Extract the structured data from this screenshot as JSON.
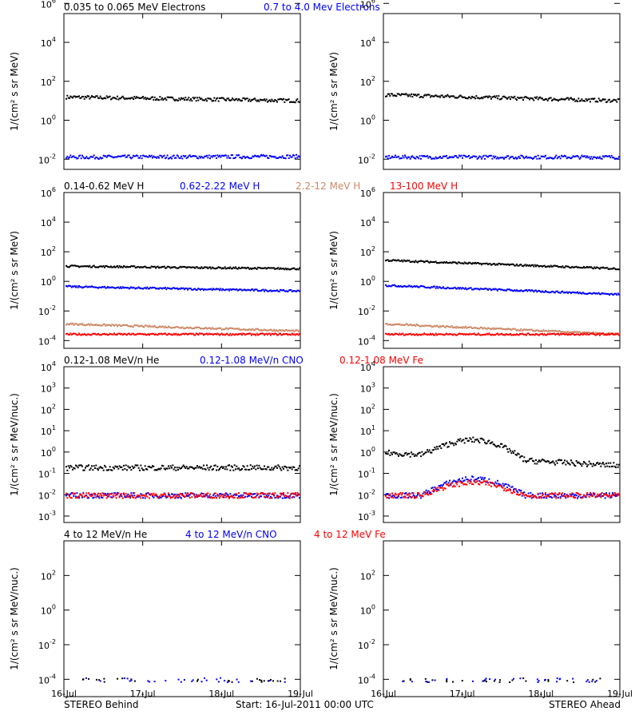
{
  "colors": {
    "black": "#000000",
    "blue": "#0000ff",
    "tan": "#cc8866",
    "red": "#ff0000"
  },
  "footer": {
    "left": "STEREO Behind",
    "center": "Start: 16-Jul-2011 00:00 UTC",
    "right": "STEREO Ahead"
  },
  "chart_data": [
    {
      "type": "scatter",
      "row": "electrons",
      "titles": [
        {
          "text": "0.035 to 0.065 MeV Electrons",
          "color": "black"
        },
        {
          "text": "0.7 to 4.0 Mev Electrons",
          "color": "blue"
        }
      ],
      "ylabel": "1/(cm² s sr MeV)",
      "yscale": "log",
      "ylim": [
        0.003,
        300000
      ],
      "yticks": [
        {
          "m": "10",
          "e": "-2",
          "v": 0.01
        },
        {
          "m": "10",
          "e": "0",
          "v": 1
        },
        {
          "m": "10",
          "e": "2",
          "v": 100
        },
        {
          "m": "10",
          "e": "4",
          "v": 10000
        },
        {
          "m": "10",
          "e": "6",
          "v": 1000000
        }
      ],
      "panels": [
        {
          "name": "STEREO Behind",
          "series": [
            {
              "color": "black",
              "y_start": 17,
              "y_end": 11
            },
            {
              "color": "blue",
              "y_start": 0.014,
              "y_end": 0.015
            }
          ]
        },
        {
          "name": "STEREO Ahead",
          "series": [
            {
              "color": "black",
              "y_start": 22,
              "y_end": 11
            },
            {
              "color": "blue",
              "y_start": 0.014,
              "y_end": 0.014
            }
          ]
        }
      ]
    },
    {
      "type": "scatter",
      "row": "protons",
      "titles": [
        {
          "text": "0.14-0.62 MeV H",
          "color": "black"
        },
        {
          "text": "0.62-2.22 MeV H",
          "color": "blue"
        },
        {
          "text": "2.2-12 MeV H",
          "color": "tan"
        },
        {
          "text": "13-100 MeV H",
          "color": "red"
        }
      ],
      "ylabel": "1/(cm² s sr MeV)",
      "yscale": "log",
      "ylim": [
        3e-05,
        1000000
      ],
      "yticks": [
        {
          "m": "10",
          "e": "-4",
          "v": 0.0001
        },
        {
          "m": "10",
          "e": "-2",
          "v": 0.01
        },
        {
          "m": "10",
          "e": "0",
          "v": 1
        },
        {
          "m": "10",
          "e": "2",
          "v": 100
        },
        {
          "m": "10",
          "e": "4",
          "v": 10000
        },
        {
          "m": "10",
          "e": "6",
          "v": 1000000
        }
      ],
      "panels": [
        {
          "name": "STEREO Behind",
          "series": [
            {
              "color": "black",
              "y_start": 12,
              "y_end": 8
            },
            {
              "color": "blue",
              "y_start": 0.5,
              "y_end": 0.25
            },
            {
              "color": "tan",
              "y_start": 0.0015,
              "y_end": 0.0005
            },
            {
              "color": "red",
              "y_start": 0.0003,
              "y_end": 0.0003
            }
          ]
        },
        {
          "name": "STEREO Ahead",
          "series": [
            {
              "color": "black",
              "y_start": 30,
              "y_end": 8
            },
            {
              "color": "blue",
              "y_start": 0.6,
              "y_end": 0.15
            },
            {
              "color": "tan",
              "y_start": 0.0015,
              "y_end": 0.0003
            },
            {
              "color": "red",
              "y_start": 0.0003,
              "y_end": 0.0003
            }
          ]
        }
      ]
    },
    {
      "type": "scatter",
      "row": "heavy-low",
      "titles": [
        {
          "text": "0.12-1.08 MeV/n He",
          "color": "black"
        },
        {
          "text": "0.12-1.08 MeV/n CNO",
          "color": "blue"
        },
        {
          "text": "0.12-1.08 MeV Fe",
          "color": "red"
        }
      ],
      "ylabel": "1/(cm² s sr MeV/nuc.)",
      "yscale": "log",
      "ylim": [
        0.0005,
        10000
      ],
      "yticks": [
        {
          "m": "10",
          "e": "-3",
          "v": 0.001
        },
        {
          "m": "10",
          "e": "-2",
          "v": 0.01
        },
        {
          "m": "10",
          "e": "-1",
          "v": 0.1
        },
        {
          "m": "10",
          "e": "0",
          "v": 1
        },
        {
          "m": "10",
          "e": "1",
          "v": 10
        },
        {
          "m": "10",
          "e": "2",
          "v": 100
        },
        {
          "m": "10",
          "e": "3",
          "v": 1000
        },
        {
          "m": "10",
          "e": "4",
          "v": 10000
        }
      ],
      "panels": [
        {
          "name": "STEREO Behind",
          "series": [
            {
              "color": "black",
              "y_start": 0.2,
              "y_end": 0.2
            },
            {
              "color": "blue",
              "y_start": 0.01,
              "y_end": 0.01
            },
            {
              "color": "red",
              "y_start": 0.01,
              "y_end": 0.01
            }
          ]
        },
        {
          "name": "STEREO Ahead",
          "series": [
            {
              "color": "black",
              "y_start": 1.0,
              "y_end": 0.25,
              "peak": 4.0
            },
            {
              "color": "blue",
              "y_start": 0.01,
              "y_end": 0.01,
              "peak": 0.06
            },
            {
              "color": "red",
              "y_start": 0.01,
              "y_end": 0.01,
              "peak": 0.04
            }
          ]
        }
      ]
    },
    {
      "type": "scatter",
      "row": "heavy-high",
      "titles": [
        {
          "text": "4 to 12 MeV/n He",
          "color": "black"
        },
        {
          "text": "4 to 12 MeV/n CNO",
          "color": "blue"
        },
        {
          "text": "4 to 12 MeV Fe",
          "color": "red"
        }
      ],
      "ylabel": "1/(cm² s sr MeV/nuc.)",
      "yscale": "log",
      "ylim": [
        1e-05,
        10000
      ],
      "yticks": [
        {
          "m": "10",
          "e": "-4",
          "v": 0.0001
        },
        {
          "m": "10",
          "e": "-2",
          "v": 0.01
        },
        {
          "m": "10",
          "e": "0",
          "v": 1
        },
        {
          "m": "10",
          "e": "2",
          "v": 100
        }
      ],
      "panels": [
        {
          "name": "STEREO Behind",
          "series": [
            {
              "color": "black",
              "y_start": 0.0001,
              "y_end": 0.0001
            },
            {
              "color": "blue",
              "y_start": 0.0001,
              "y_end": 0.0001
            }
          ]
        },
        {
          "name": "STEREO Ahead",
          "series": [
            {
              "color": "black",
              "y_start": 0.0001,
              "y_end": 0.0001
            },
            {
              "color": "blue",
              "y_start": 0.0001,
              "y_end": 0.0001
            }
          ]
        }
      ]
    }
  ],
  "xaxis": {
    "ticks": [
      "16-Jul",
      "17-Jul",
      "18-Jul",
      "19-Jul"
    ],
    "range_days": [
      0,
      3
    ]
  }
}
